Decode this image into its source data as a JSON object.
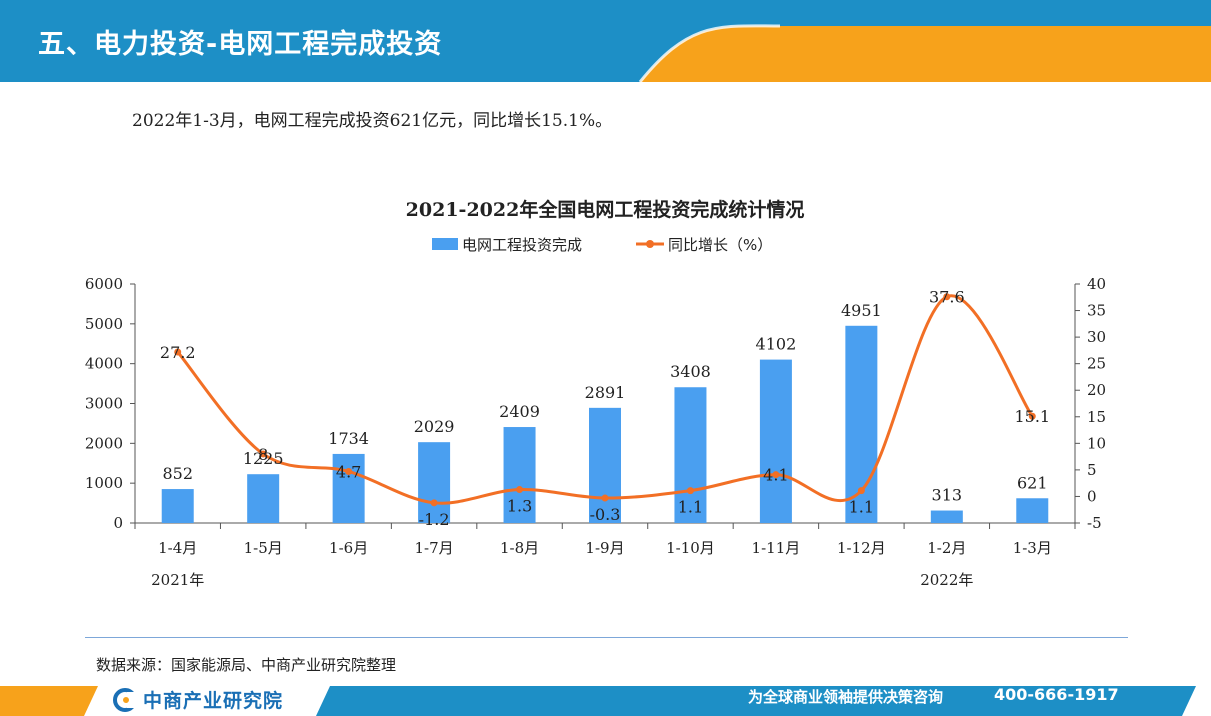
{
  "header": {
    "title": "五、电力投资-电网工程完成投资"
  },
  "summary": "2022年1-3月，电网工程完成投资621亿元，同比增长15.1%。",
  "colors": {
    "header_blue": "#1d8fc6",
    "header_orange": "#f7a21b",
    "bar_blue": "#4a9ff0",
    "line_orange": "#f26f25",
    "footer_blue": "#1d8fc6"
  },
  "chart_data": {
    "type": "bar+line",
    "title": "2021-2022年全国电网工程投资完成统计情况",
    "categories": [
      "1-4月",
      "1-5月",
      "1-6月",
      "1-7月",
      "1-8月",
      "1-9月",
      "1-10月",
      "1-11月",
      "1-12月",
      "1-2月",
      "1-3月"
    ],
    "year_labels": [
      {
        "label": "2021年",
        "category_index": 0
      },
      {
        "label": "2022年",
        "category_index": 9
      }
    ],
    "series": [
      {
        "name": "电网工程投资完成",
        "type": "bar",
        "axis": "left",
        "values": [
          852,
          1225,
          1734,
          2029,
          2409,
          2891,
          3408,
          4102,
          4951,
          313,
          621
        ],
        "labels": [
          "852",
          "1225",
          "1734",
          "2029",
          "2409",
          "2891",
          "3408",
          "4102",
          "4951",
          "313",
          "621"
        ]
      },
      {
        "name": "同比增长（%）",
        "type": "line",
        "axis": "right",
        "values": [
          27.2,
          8.0,
          4.7,
          -1.2,
          1.3,
          -0.3,
          1.1,
          4.1,
          1.1,
          37.6,
          15.1
        ],
        "labels": [
          "27.2",
          "8",
          "4.7",
          "-1.2",
          "1.3",
          "-0.3",
          "1.1",
          "4.1",
          "1.1",
          "37.6",
          "15.1"
        ]
      }
    ],
    "y_left": {
      "min": 0,
      "max": 6000,
      "ticks": [
        "0",
        "1000",
        "2000",
        "3000",
        "4000",
        "5000",
        "6000"
      ]
    },
    "y_right": {
      "min": -5,
      "max": 40,
      "ticks": [
        "-5",
        "0",
        "5",
        "10",
        "15",
        "20",
        "25",
        "30",
        "35",
        "40"
      ]
    },
    "legend_position": "top-center",
    "grid": false
  },
  "source": "数据来源：国家能源局、中商产业研究院整理",
  "footer": {
    "logo_text": "中商产业研究院",
    "slogan": "为全球商业领袖提供决策咨询",
    "phone": "400-666-1917"
  }
}
